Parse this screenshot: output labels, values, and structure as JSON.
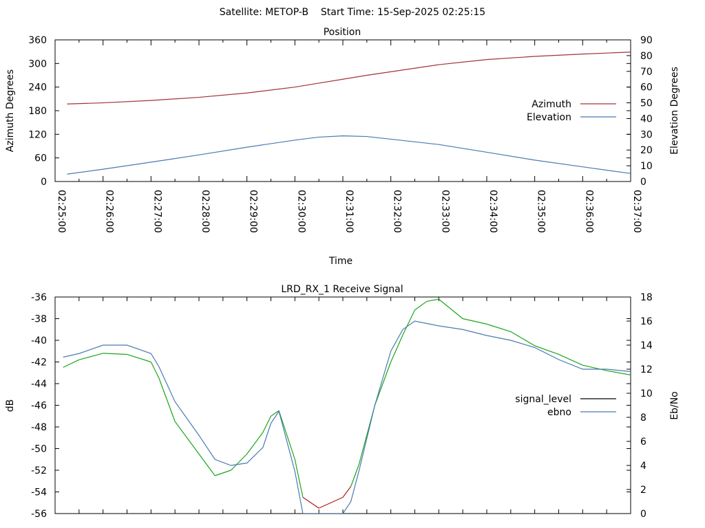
{
  "header": {
    "title": "Satellite: METOP-B    Start Time: 15-Sep-2025 02:25:15"
  },
  "chart_data": [
    {
      "type": "line",
      "title": "Position",
      "xlabel": "Time",
      "ylabel": "Azimuth Degrees",
      "y2label": "Elevation Degrees",
      "x_ticks": [
        "02:25:00",
        "02:26:00",
        "02:27:00",
        "02:28:00",
        "02:29:00",
        "02:30:00",
        "02:31:00",
        "02:32:00",
        "02:33:00",
        "02:34:00",
        "02:35:00",
        "02:36:00",
        "02:37:00"
      ],
      "xlim": [
        "02:25:00",
        "02:37:00"
      ],
      "ylim": [
        0,
        360
      ],
      "y_ticks": [
        0,
        60,
        120,
        180,
        240,
        300,
        360
      ],
      "y2lim": [
        0,
        90
      ],
      "y2_ticks": [
        0,
        10,
        20,
        30,
        40,
        50,
        60,
        70,
        80,
        90
      ],
      "legend_position": "right",
      "series": [
        {
          "name": "Azimuth",
          "axis": "y",
          "color": "#a0303a",
          "x": [
            "02:25:15",
            "02:26:00",
            "02:27:00",
            "02:28:00",
            "02:29:00",
            "02:30:00",
            "02:30:30",
            "02:31:00",
            "02:31:30",
            "02:32:00",
            "02:33:00",
            "02:34:00",
            "02:35:00",
            "02:36:00",
            "02:37:00"
          ],
          "values": [
            197,
            200,
            206,
            214,
            225,
            240,
            250,
            260,
            270,
            279,
            297,
            310,
            318,
            324,
            329
          ]
        },
        {
          "name": "Elevation",
          "axis": "y2",
          "color": "#4a78b0",
          "x": [
            "02:25:15",
            "02:26:00",
            "02:27:00",
            "02:28:00",
            "02:29:00",
            "02:30:00",
            "02:30:30",
            "02:31:00",
            "02:31:30",
            "02:32:00",
            "02:33:00",
            "02:34:00",
            "02:35:00",
            "02:36:00",
            "02:37:00"
          ],
          "values": [
            4.7,
            7.8,
            12.3,
            16.9,
            21.8,
            26.3,
            28.2,
            29,
            28.6,
            26.9,
            23.5,
            18.6,
            13.6,
            9.3,
            5.1
          ]
        }
      ]
    },
    {
      "type": "line",
      "title": "LRD_RX_1 Receive Signal",
      "ylabel": "dB",
      "y2label": "Eb/No",
      "xlim": [
        "02:25:00",
        "02:37:00"
      ],
      "ylim": [
        -56,
        -36
      ],
      "y_ticks": [
        -56,
        -54,
        -52,
        -50,
        -48,
        -46,
        -44,
        -42,
        -40,
        -38,
        -36
      ],
      "y2lim": [
        0,
        18
      ],
      "y2_ticks": [
        0,
        2,
        4,
        6,
        8,
        10,
        12,
        14,
        16,
        18
      ],
      "legend_position": "right",
      "series": [
        {
          "name": "signal_level",
          "axis": "y",
          "color": "#1aa51a",
          "low_color": "#b01818",
          "x": [
            "02:25:10",
            "02:25:30",
            "02:26:00",
            "02:26:30",
            "02:27:00",
            "02:27:10",
            "02:27:30",
            "02:28:00",
            "02:28:20",
            "02:28:40",
            "02:29:00",
            "02:29:20",
            "02:29:30",
            "02:29:40",
            "02:30:00",
            "02:30:10",
            "02:30:30",
            "02:30:45",
            "02:31:00",
            "02:31:10",
            "02:31:20",
            "02:31:40",
            "02:32:00",
            "02:32:15",
            "02:32:30",
            "02:32:45",
            "02:33:00",
            "02:33:30",
            "02:34:00",
            "02:34:30",
            "02:35:00",
            "02:35:30",
            "02:36:00",
            "02:36:30",
            "02:37:00"
          ],
          "values": [
            -42.5,
            -41.8,
            -41.2,
            -41.3,
            -42.0,
            -43.5,
            -47.5,
            -50.5,
            -52.5,
            -52.0,
            -50.5,
            -48.5,
            -47.0,
            -46.5,
            -51.0,
            -54.5,
            -55.5,
            -55.0,
            -54.5,
            -53.5,
            -51.5,
            -46.0,
            -42.0,
            -39.5,
            -37.2,
            -36.4,
            -36.2,
            -38.0,
            -38.5,
            -39.2,
            -40.5,
            -41.3,
            -42.3,
            -42.8,
            -43.2
          ]
        },
        {
          "name": "ebno",
          "axis": "y2",
          "color": "#4a78b0",
          "x": [
            "02:25:10",
            "02:25:30",
            "02:26:00",
            "02:26:30",
            "02:27:00",
            "02:27:10",
            "02:27:30",
            "02:28:00",
            "02:28:20",
            "02:28:40",
            "02:29:00",
            "02:29:20",
            "02:29:30",
            "02:29:40",
            "02:30:00",
            "02:30:10",
            "02:30:30",
            "02:30:45",
            "02:31:00",
            "02:31:10",
            "02:31:20",
            "02:31:40",
            "02:32:00",
            "02:32:15",
            "02:32:30",
            "02:32:45",
            "02:33:00",
            "02:33:30",
            "02:34:00",
            "02:34:30",
            "02:35:00",
            "02:35:30",
            "02:36:00",
            "02:36:30",
            "02:37:00"
          ],
          "values": [
            13.0,
            13.3,
            14.0,
            14.0,
            13.3,
            12.2,
            9.3,
            6.5,
            4.5,
            4.0,
            4.2,
            5.5,
            7.5,
            8.5,
            3.5,
            0.0,
            0.0,
            0.0,
            0.0,
            1.0,
            3.5,
            9.0,
            13.5,
            15.3,
            16.0,
            15.8,
            15.6,
            15.3,
            14.8,
            14.4,
            13.8,
            12.8,
            12.0,
            12.0,
            11.8
          ]
        }
      ]
    }
  ]
}
